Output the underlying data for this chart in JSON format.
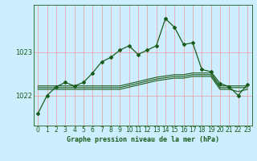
{
  "title": "Graphe pression niveau de la mer (hPa)",
  "bg_color": "#cceeff",
  "plot_bg_color": "#cceeff",
  "line_color": "#1a5c1a",
  "grid_color": "#ee9999",
  "xlabel_ticks": [
    0,
    1,
    2,
    3,
    4,
    5,
    6,
    7,
    8,
    9,
    10,
    11,
    12,
    13,
    14,
    15,
    16,
    17,
    18,
    19,
    20,
    21,
    22,
    23
  ],
  "ylim": [
    1021.3,
    1024.1
  ],
  "yticks": [
    1022,
    1023
  ],
  "main_series": [
    1021.58,
    1022.0,
    1022.2,
    1022.3,
    1022.22,
    1022.3,
    1022.52,
    1022.78,
    1022.88,
    1023.05,
    1023.15,
    1022.95,
    1023.05,
    1023.15,
    1023.78,
    1023.58,
    1023.18,
    1023.22,
    1022.6,
    1022.55,
    1022.28,
    1022.2,
    1022.0,
    1022.25
  ],
  "flat_lines": [
    [
      1022.22,
      1022.22,
      1022.22,
      1022.22,
      1022.22,
      1022.22,
      1022.22,
      1022.22,
      1022.22,
      1022.22,
      1022.27,
      1022.32,
      1022.37,
      1022.42,
      1022.45,
      1022.48,
      1022.48,
      1022.52,
      1022.52,
      1022.52,
      1022.22,
      1022.22,
      1022.22,
      1022.22
    ],
    [
      1022.18,
      1022.18,
      1022.18,
      1022.18,
      1022.18,
      1022.18,
      1022.18,
      1022.18,
      1022.18,
      1022.18,
      1022.23,
      1022.28,
      1022.33,
      1022.38,
      1022.41,
      1022.44,
      1022.44,
      1022.48,
      1022.48,
      1022.48,
      1022.18,
      1022.18,
      1022.18,
      1022.18
    ],
    [
      1022.14,
      1022.14,
      1022.14,
      1022.14,
      1022.14,
      1022.14,
      1022.14,
      1022.14,
      1022.14,
      1022.14,
      1022.19,
      1022.24,
      1022.29,
      1022.34,
      1022.37,
      1022.4,
      1022.4,
      1022.44,
      1022.44,
      1022.44,
      1022.14,
      1022.14,
      1022.09,
      1022.14
    ]
  ],
  "tick_fontsize": 5.5,
  "label_fontsize": 6.0
}
